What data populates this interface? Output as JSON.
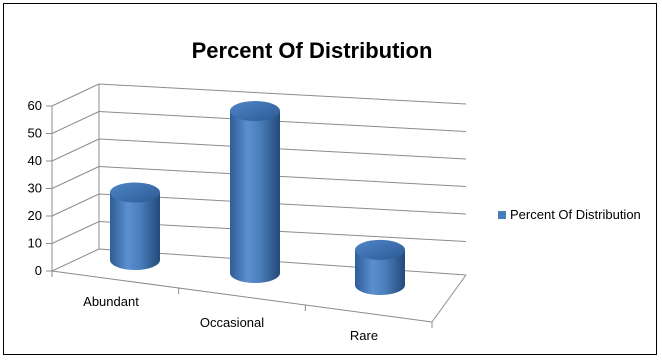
{
  "chart_data": {
    "type": "bar",
    "title": "Percent Of Distribution",
    "categories": [
      "Abundant",
      "Occasional",
      "Rare"
    ],
    "series": [
      {
        "name": "Percent Of Distribution",
        "values": [
          25,
          60,
          13
        ]
      }
    ],
    "ylim": [
      0,
      60
    ],
    "yticks": [
      0,
      10,
      20,
      30,
      40,
      50,
      60
    ],
    "grid": true,
    "legend": "right",
    "colors": {
      "bar": "#4a7ebb",
      "grid": "#8c8c8c"
    }
  }
}
